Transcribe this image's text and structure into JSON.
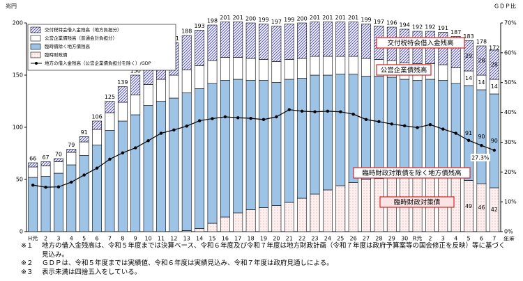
{
  "chart_data": {
    "type": "bar",
    "stacked": true,
    "y_label": "兆円",
    "y2_label": "ＧＤＰ比",
    "x_label": "年度",
    "categories": [
      "H元",
      "2",
      "3",
      "4",
      "5",
      "6",
      "7",
      "8",
      "9",
      "10",
      "11",
      "12",
      "13",
      "14",
      "15",
      "16",
      "17",
      "18",
      "19",
      "20",
      "21",
      "22",
      "23",
      "24",
      "25",
      "26",
      "27",
      "28",
      "29",
      "30",
      "R元",
      "2",
      "3",
      "4",
      "5",
      "6",
      "7"
    ],
    "ylim": [
      0,
      200
    ],
    "yticks": [
      0,
      50,
      100,
      150,
      200
    ],
    "y2lim": [
      0,
      70
    ],
    "y2ticks": [
      {
        "value": 0,
        "label": "0%"
      },
      {
        "value": 10,
        "label": "10%"
      },
      {
        "value": 20,
        "label": "20%"
      },
      {
        "value": 30,
        "label": "30%"
      },
      {
        "value": 40,
        "label": "40%"
      },
      {
        "value": 50,
        "label": "50%"
      },
      {
        "value": 60,
        "label": "60%"
      },
      {
        "value": 70,
        "label": "70%"
      }
    ],
    "grid": false,
    "legend": "upper left",
    "totals": [
      66,
      67,
      70,
      79,
      91,
      106,
      125,
      139,
      150,
      163,
      174,
      181,
      188,
      193,
      198,
      201,
      201,
      200,
      199,
      197,
      199,
      200,
      201,
      201,
      201,
      201,
      199,
      197,
      196,
      194,
      192,
      192,
      191,
      187,
      183,
      178,
      172
    ],
    "series": [
      {
        "name": "臨時財政債",
        "color": "#e8a0a0",
        "pattern": "dots",
        "values": [
          0,
          0,
          0,
          0,
          0,
          0,
          0,
          0,
          0,
          0,
          0,
          0,
          1,
          3,
          8,
          14,
          18,
          21,
          23,
          25,
          28,
          32,
          36,
          40,
          44,
          47,
          50,
          51,
          53,
          54,
          54,
          54,
          55,
          54,
          49,
          46,
          42
        ],
        "value_labels": [
          null,
          null,
          null,
          null,
          null,
          null,
          null,
          null,
          null,
          null,
          null,
          null,
          null,
          null,
          null,
          null,
          null,
          null,
          null,
          null,
          null,
          null,
          null,
          null,
          null,
          null,
          null,
          null,
          null,
          null,
          null,
          null,
          null,
          null,
          "49",
          "46",
          "42"
        ]
      },
      {
        "name": "臨時債除く地方債残高",
        "color": "#9dc3e6",
        "pattern": "solid",
        "values": [
          52,
          53,
          56,
          64,
          73,
          83,
          97,
          106,
          112,
          121,
          125,
          128,
          132,
          134,
          134,
          131,
          128,
          124,
          122,
          118,
          118,
          115,
          114,
          110,
          107,
          104,
          99,
          98,
          95,
          92,
          91,
          92,
          90,
          88,
          91,
          90,
          90
        ],
        "value_labels": [
          null,
          null,
          null,
          null,
          null,
          null,
          null,
          null,
          null,
          null,
          null,
          null,
          null,
          null,
          null,
          null,
          null,
          null,
          null,
          null,
          null,
          null,
          null,
          null,
          null,
          null,
          null,
          null,
          null,
          null,
          null,
          null,
          null,
          null,
          "91",
          "90",
          "90"
        ]
      },
      {
        "name": "公営企業債残高（普通会計負担分）",
        "color": "#ffffff",
        "pattern": "solid",
        "values": [
          10,
          10,
          11,
          12,
          13,
          15,
          17,
          18,
          19,
          20,
          21,
          22,
          22,
          22,
          22,
          22,
          21,
          21,
          20,
          20,
          19,
          19,
          18,
          18,
          17,
          17,
          17,
          16,
          16,
          16,
          16,
          15,
          15,
          15,
          14,
          14,
          14
        ],
        "value_labels": [
          null,
          null,
          null,
          null,
          null,
          null,
          null,
          null,
          null,
          null,
          null,
          null,
          null,
          null,
          null,
          null,
          null,
          null,
          null,
          null,
          null,
          null,
          null,
          null,
          null,
          null,
          null,
          null,
          null,
          null,
          null,
          null,
          null,
          null,
          "14",
          "14",
          "14"
        ]
      },
      {
        "name": "交付税特会借入金残高（地方負担分）",
        "color": "#5050b0",
        "pattern": "hatch",
        "values": [
          4,
          4,
          3,
          3,
          5,
          8,
          11,
          15,
          19,
          22,
          28,
          31,
          33,
          34,
          34,
          34,
          34,
          34,
          34,
          34,
          34,
          34,
          33,
          33,
          33,
          33,
          33,
          32,
          32,
          32,
          31,
          31,
          31,
          30,
          29,
          28,
          28
        ],
        "value_labels": [
          null,
          null,
          null,
          null,
          null,
          null,
          null,
          null,
          null,
          null,
          null,
          null,
          null,
          null,
          null,
          null,
          null,
          null,
          null,
          null,
          null,
          null,
          null,
          null,
          null,
          null,
          null,
          null,
          null,
          null,
          null,
          null,
          null,
          null,
          "29",
          "28",
          "28"
        ]
      },
      {
        "name": "地方の借入金残高（公営企業債負担分を除く）/GDP",
        "color": "#000000",
        "type": "line",
        "axis": "y2",
        "values": [
          15.6,
          14.9,
          15.0,
          16.6,
          19.0,
          21.3,
          24.3,
          26.4,
          28.1,
          30.5,
          33.0,
          34.1,
          35.4,
          37.2,
          37.9,
          38.5,
          38.2,
          38.0,
          37.6,
          38.5,
          40.9,
          40.4,
          40.2,
          40.4,
          40.2,
          39.4,
          37.6,
          36.9,
          36.1,
          35.5,
          34.9,
          35.9,
          34.4,
          33.0,
          30.6,
          28.9,
          27.3
        ],
        "value_labels": [
          null,
          null,
          null,
          null,
          null,
          null,
          null,
          null,
          null,
          null,
          null,
          null,
          null,
          null,
          null,
          null,
          null,
          null,
          null,
          null,
          null,
          null,
          null,
          null,
          null,
          null,
          null,
          null,
          null,
          null,
          null,
          null,
          null,
          null,
          null,
          null,
          "27.3%"
        ]
      }
    ],
    "annotations": [
      "交付税特会借入金残高",
      "公営企業債残高",
      "臨時財政対策債を除く地方債残高",
      "臨時財政対策債"
    ]
  },
  "notes": [
    {
      "mark": "※１",
      "text": "地方の借入金残高は、令和５年度までは決算ベース、令和６年度及び令和７年度は地方財政計画（令和７年度は政府予算案等の国会修正を反映）等に基づく見込み。"
    },
    {
      "mark": "※２",
      "text": "ＧＤＰは、令和５年度までは実績値、令和６年度は実績見込み、令和７年度は政府見通しによる。"
    },
    {
      "mark": "※３",
      "text": "表示未満は四捨五入をしている。"
    }
  ]
}
